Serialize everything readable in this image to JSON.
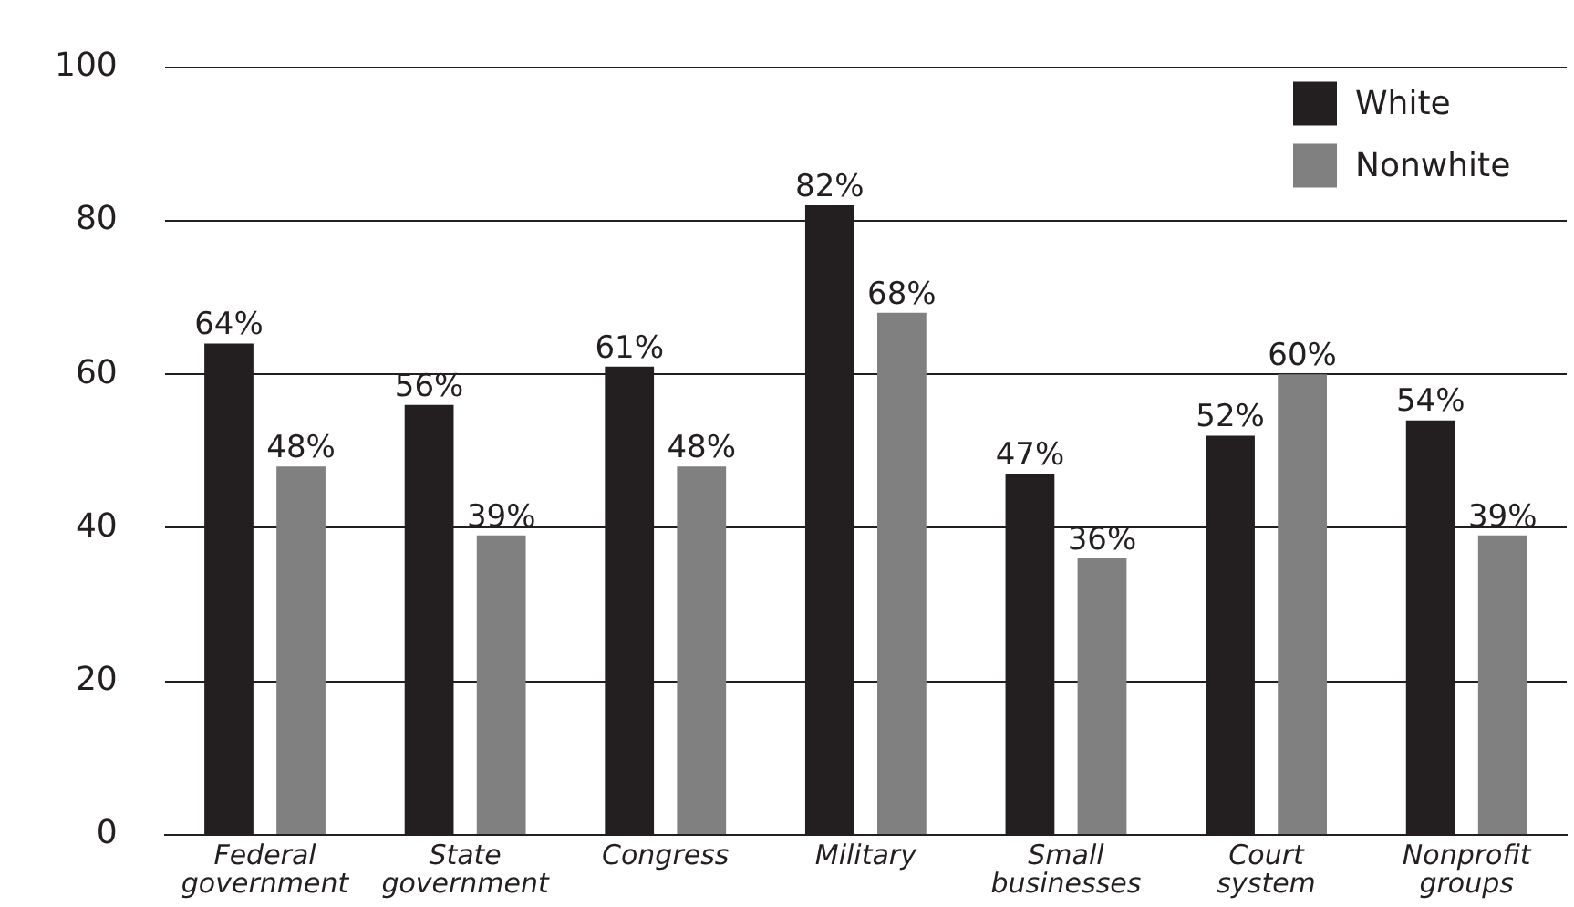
{
  "chart_data": {
    "type": "bar",
    "categories": [
      "Federal government",
      "State government",
      "Congress",
      "Military",
      "Small businesses",
      "Court system",
      "Nonprofit groups"
    ],
    "series": [
      {
        "name": "White",
        "color": "#231f20",
        "values": [
          64,
          56,
          61,
          82,
          47,
          52,
          54
        ],
        "value_labels": [
          "64%",
          "56%",
          "61%",
          "82%",
          "47%",
          "52%",
          "54%"
        ]
      },
      {
        "name": "Nonwhite",
        "color": "#808080",
        "values": [
          48,
          39,
          48,
          68,
          36,
          60,
          39
        ],
        "value_labels": [
          "48%",
          "39%",
          "48%",
          "68%",
          "36%",
          "60%",
          "39%"
        ]
      }
    ],
    "ylim": [
      0,
      100
    ],
    "yticks": [
      0,
      20,
      40,
      60,
      80,
      100
    ],
    "grid": "y",
    "legend": "top right"
  }
}
